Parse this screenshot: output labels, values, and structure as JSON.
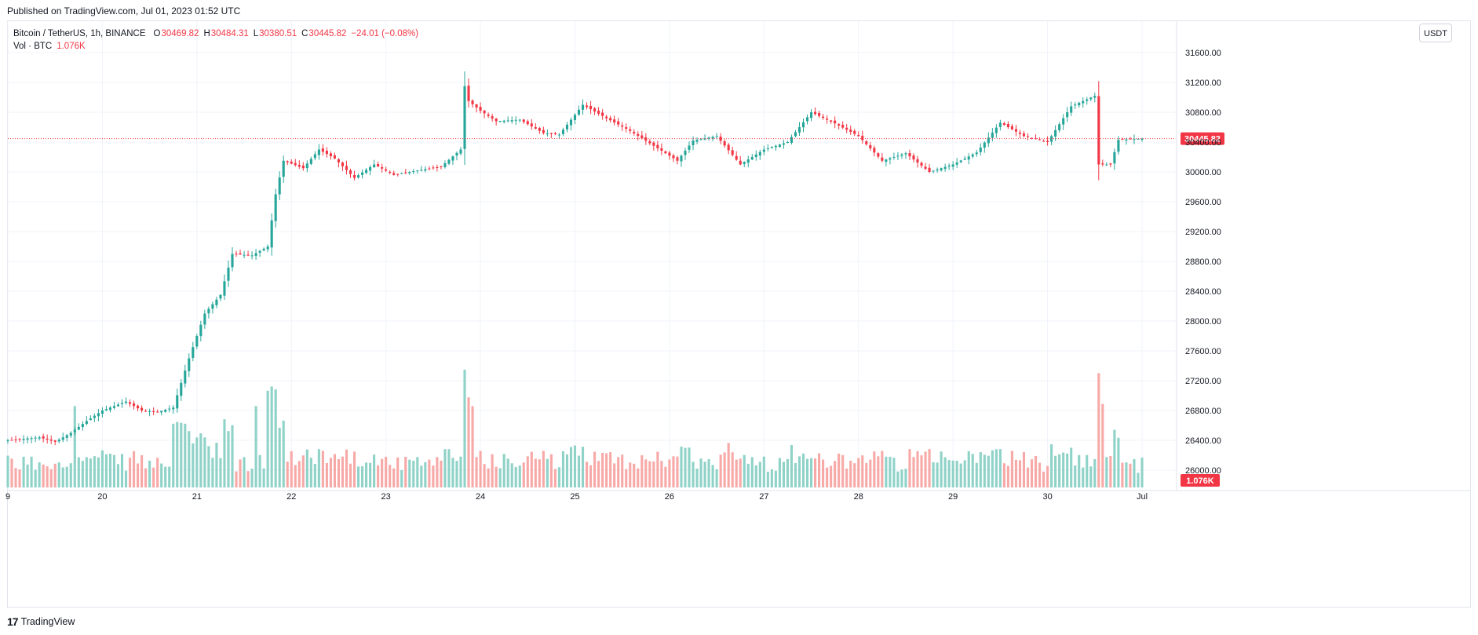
{
  "header": {
    "published": "Published on TradingView.com, Jul 01, 2023 01:52 UTC"
  },
  "legend": {
    "symbol": "Bitcoin / TetherUS, 1h, BINANCE",
    "o_label": "O",
    "o_value": "30469.82",
    "h_label": "H",
    "h_value": "30484.31",
    "l_label": "L",
    "l_value": "30380.51",
    "c_label": "C",
    "c_value": "30445.82",
    "change": "−24.01 (−0.08%)",
    "vol_label": "Vol · BTC",
    "vol_value": "1.076K"
  },
  "toolbar": {
    "currency_label": "USDT"
  },
  "footer": {
    "brand": "TradingView",
    "brand_icon": "tradingview-logo-icon"
  },
  "colors": {
    "up": "#26a69a",
    "down": "#f23645",
    "up_volume": "#8fd2c8",
    "down_volume": "#f7a9a7",
    "grid": "#f0f3fa"
  },
  "chart_data": {
    "type": "candlestick",
    "symbol": "BTCUSDT",
    "interval": "1h",
    "yaxis_ticks": [
      26000,
      26400,
      26800,
      27200,
      27600,
      28000,
      28400,
      28800,
      29200,
      29600,
      30000,
      30400,
      30800,
      31200,
      31600
    ],
    "ylim": [
      25800,
      31800
    ],
    "xaxis_ticks": [
      "9",
      "20",
      "21",
      "22",
      "23",
      "24",
      "25",
      "26",
      "27",
      "28",
      "29",
      "30",
      "Jul"
    ],
    "last_price": "30445.82",
    "last_volume": "1.076K",
    "grid": true,
    "anchors": [
      [
        0,
        26400
      ],
      [
        8,
        26440
      ],
      [
        12,
        26380
      ],
      [
        16,
        26500
      ],
      [
        20,
        26660
      ],
      [
        24,
        26800
      ],
      [
        30,
        26920
      ],
      [
        34,
        26800
      ],
      [
        38,
        26780
      ],
      [
        42,
        26840
      ],
      [
        46,
        27500
      ],
      [
        50,
        28100
      ],
      [
        54,
        28350
      ],
      [
        57,
        28900
      ],
      [
        62,
        28880
      ],
      [
        66,
        29000
      ],
      [
        68,
        29700
      ],
      [
        70,
        30150
      ],
      [
        75,
        30050
      ],
      [
        79,
        30300
      ],
      [
        83,
        30180
      ],
      [
        88,
        29920
      ],
      [
        93,
        30100
      ],
      [
        98,
        29960
      ],
      [
        104,
        30020
      ],
      [
        110,
        30070
      ],
      [
        115,
        30300
      ],
      [
        116,
        31150
      ],
      [
        117,
        30950
      ],
      [
        120,
        30820
      ],
      [
        124,
        30680
      ],
      [
        130,
        30700
      ],
      [
        136,
        30520
      ],
      [
        140,
        30500
      ],
      [
        146,
        30900
      ],
      [
        152,
        30720
      ],
      [
        158,
        30550
      ],
      [
        164,
        30350
      ],
      [
        170,
        30150
      ],
      [
        174,
        30420
      ],
      [
        180,
        30480
      ],
      [
        186,
        30100
      ],
      [
        192,
        30300
      ],
      [
        198,
        30400
      ],
      [
        204,
        30800
      ],
      [
        210,
        30650
      ],
      [
        216,
        30480
      ],
      [
        222,
        30150
      ],
      [
        228,
        30250
      ],
      [
        234,
        30000
      ],
      [
        240,
        30100
      ],
      [
        246,
        30260
      ],
      [
        252,
        30660
      ],
      [
        258,
        30480
      ],
      [
        264,
        30400
      ],
      [
        270,
        30880
      ],
      [
        276,
        31020
      ],
      [
        277,
        30100
      ],
      [
        280,
        30100
      ],
      [
        282,
        30430
      ],
      [
        288,
        30446
      ]
    ],
    "volume_spikes": {
      "17": 370,
      "42": 290,
      "45": 290,
      "63": 370,
      "66": 440,
      "117": 410,
      "118": 370,
      "277": 520,
      "278": 380
    }
  }
}
